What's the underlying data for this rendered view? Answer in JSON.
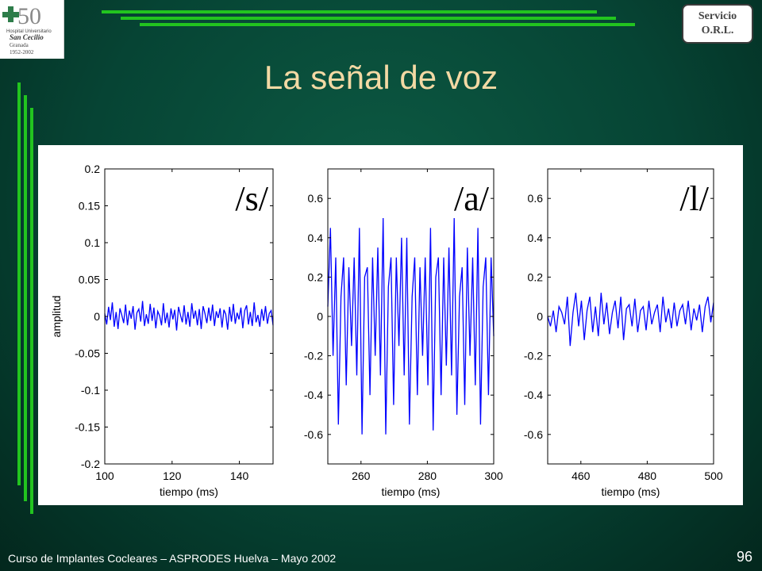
{
  "slide": {
    "title": "La señal de voz",
    "footer": "Curso de Implantes Cocleares – ASPRODES Huelva – Mayo 2002",
    "page_number": "96",
    "badge": {
      "line1": "Servicio",
      "line2": "O.R.L."
    },
    "logo": {
      "number": "50",
      "line1": "Hospital Universitario",
      "line2": "San Cecilio",
      "line3": "Granada",
      "line4": "1952-2002"
    },
    "colors": {
      "background": "#064434",
      "accent": "#22c41f",
      "title": "#f3d9a4",
      "trace": "#0000ff"
    }
  },
  "chart_data": [
    {
      "type": "line",
      "phoneme_label": "/s/",
      "xlabel": "tiempo (ms)",
      "ylabel": "amplitud",
      "xlim": [
        100,
        150
      ],
      "ylim": [
        -0.2,
        0.2
      ],
      "xticks": [
        100,
        120,
        140
      ],
      "yticks": [
        0.2,
        0.15,
        0.1,
        0.05,
        0,
        -0.05,
        -0.1,
        -0.15,
        -0.2
      ],
      "ytick_labels": [
        "0.2",
        "0.15",
        "0.1",
        "0.05",
        "0",
        "-0.05",
        "-0.1",
        "-0.15",
        "-0.2"
      ],
      "series": [
        {
          "color": "#0000ff",
          "x_start": 100,
          "x_end": 150,
          "values": [
            0.004,
            -0.011,
            0.013,
            -0.005,
            0.019,
            -0.014,
            0.006,
            -0.017,
            0.011,
            0.002,
            -0.009,
            0.016,
            -0.012,
            0.008,
            -0.003,
            0.014,
            -0.018,
            0.005,
            0.01,
            -0.007,
            0.021,
            -0.013,
            0.003,
            -0.01,
            0.017,
            -0.006,
            0.012,
            -0.016,
            0.007,
            0.001,
            -0.012,
            0.018,
            -0.009,
            0.005,
            -0.015,
            0.011,
            -0.004,
            0.009,
            -0.019,
            0.013,
            0.002,
            -0.008,
            0.015,
            -0.011,
            0.006,
            -0.014,
            0.018,
            -0.003,
            0.008,
            -0.012,
            0.01,
            -0.017,
            0.014,
            0.004,
            -0.009,
            0.012,
            -0.006,
            0.016,
            -0.013,
            0.007,
            -0.002,
            0.011,
            -0.015,
            0.009,
            0.003,
            -0.018,
            0.013,
            -0.007,
            0.017,
            -0.01,
            0.005,
            -0.004,
            0.012,
            -0.016,
            0.008,
            0.015,
            -0.011,
            0.006,
            -0.013,
            0.019,
            -0.008,
            0.002,
            -0.014,
            0.01,
            -0.006,
            0.014,
            -0.01,
            0.004,
            0.008,
            -0.012
          ]
        }
      ]
    },
    {
      "type": "line",
      "phoneme_label": "/a/",
      "xlabel": "tiempo (ms)",
      "ylabel": "",
      "xlim": [
        250,
        300
      ],
      "ylim": [
        -0.75,
        0.75
      ],
      "xticks": [
        260,
        280,
        300
      ],
      "yticks": [
        0.6,
        0.4,
        0.2,
        0,
        -0.2,
        -0.4,
        -0.6
      ],
      "ytick_labels": [
        "0.6",
        "0.4",
        "0.2",
        "0",
        "-0.2",
        "-0.4",
        "-0.6"
      ],
      "series": [
        {
          "color": "#0000ff",
          "x_start": 250,
          "x_end": 300,
          "values": [
            0.05,
            0.45,
            -0.2,
            0.3,
            -0.55,
            0.1,
            0.3,
            -0.35,
            0.25,
            -0.15,
            0.3,
            -0.3,
            0.45,
            -0.6,
            0.2,
            0.25,
            -0.4,
            0.3,
            -0.2,
            0.35,
            -0.3,
            0.5,
            -0.6,
            0.15,
            0.3,
            -0.45,
            0.3,
            -0.15,
            0.4,
            -0.3,
            0.4,
            -0.55,
            0.1,
            0.3,
            -0.4,
            0.25,
            -0.2,
            0.3,
            -0.35,
            0.45,
            -0.58,
            0.2,
            0.3,
            -0.4,
            0.3,
            -0.25,
            0.35,
            -0.3,
            0.5,
            -0.5,
            0.1,
            0.25,
            -0.45,
            0.35,
            -0.2,
            0.3,
            -0.35,
            0.45,
            -0.55,
            0.15,
            0.3,
            -0.4,
            0.3,
            -0.1
          ]
        }
      ]
    },
    {
      "type": "line",
      "phoneme_label": "/l/",
      "xlabel": "tiempo (ms)",
      "ylabel": "",
      "xlim": [
        450,
        500
      ],
      "ylim": [
        -0.75,
        0.75
      ],
      "xticks": [
        460,
        480,
        500
      ],
      "yticks": [
        0.6,
        0.4,
        0.2,
        0,
        -0.2,
        -0.4,
        -0.6
      ],
      "ytick_labels": [
        "0.6",
        "0.4",
        "0.2",
        "0",
        "-0.2",
        "-0.4",
        "-0.6"
      ],
      "series": [
        {
          "color": "#0000ff",
          "x_start": 450,
          "x_end": 500,
          "values": [
            0.0,
            -0.05,
            0.03,
            -0.08,
            0.05,
            0.02,
            -0.04,
            0.1,
            -0.15,
            0.02,
            0.12,
            -0.05,
            0.08,
            -0.12,
            0.03,
            0.1,
            -0.08,
            0.05,
            -0.1,
            0.12,
            -0.04,
            0.07,
            -0.09,
            0.02,
            0.08,
            -0.06,
            0.1,
            -0.12,
            0.04,
            0.06,
            -0.05,
            0.09,
            -0.08,
            0.03,
            0.05,
            -0.07,
            0.08,
            -0.04,
            0.02,
            0.06,
            -0.08,
            0.1,
            -0.03,
            0.04,
            -0.06,
            0.07,
            -0.05,
            0.03,
            0.06,
            -0.04,
            0.08,
            -0.07,
            0.04,
            -0.02,
            0.06,
            -0.08,
            0.05,
            0.1,
            -0.03,
            0.07
          ]
        }
      ]
    }
  ]
}
